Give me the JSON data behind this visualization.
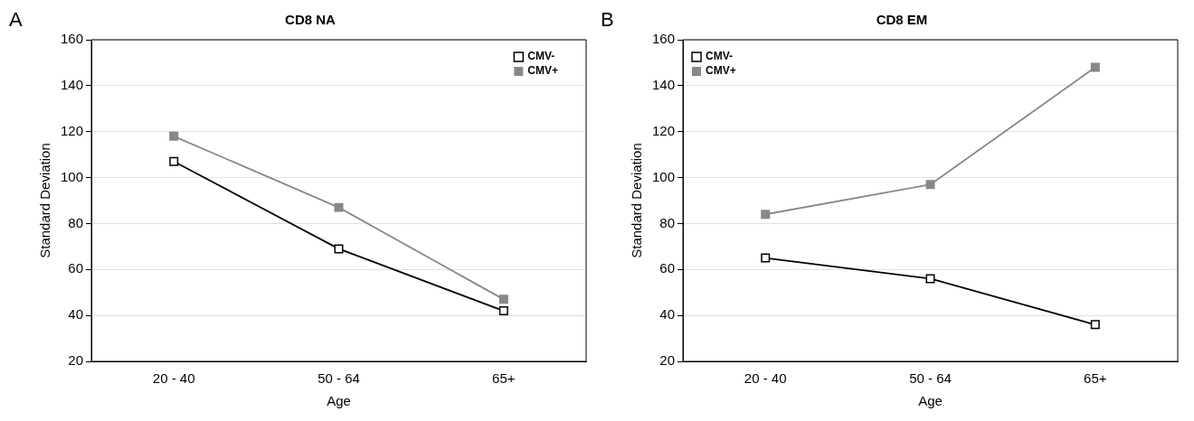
{
  "chart_data": [
    {
      "type": "line",
      "title": "CD8 NA",
      "xlabel": "Age",
      "ylabel": "Standard Deviation",
      "annotations": [
        "A"
      ],
      "categories": [
        "20 - 40",
        "50 - 64",
        "65+"
      ],
      "series": [
        {
          "name": "CMV-",
          "color": "#000000",
          "values": [
            107,
            69,
            42
          ]
        },
        {
          "name": "CMV+",
          "color": "#888888",
          "values": [
            118,
            87,
            47
          ]
        }
      ],
      "ylim": [
        20,
        160
      ],
      "yticks": [
        20,
        40,
        60,
        80,
        100,
        120,
        140,
        160
      ],
      "grid": "y",
      "legend": "top right",
      "marker": "square",
      "line_style": "solid"
    },
    {
      "type": "line",
      "title": "CD8 EM",
      "xlabel": "Age",
      "ylabel": "Standard Deviation",
      "annotations": [
        "B"
      ],
      "categories": [
        "20 - 40",
        "50 - 64",
        "65+"
      ],
      "series": [
        {
          "name": "CMV-",
          "color": "#000000",
          "values": [
            65,
            56,
            36
          ]
        },
        {
          "name": "CMV+",
          "color": "#888888",
          "values": [
            84,
            97,
            148
          ]
        }
      ],
      "ylim": [
        20,
        160
      ],
      "yticks": [
        20,
        40,
        60,
        80,
        100,
        120,
        140,
        160
      ],
      "grid": "y",
      "legend": "top left",
      "marker": "square",
      "line_style": "solid"
    }
  ]
}
